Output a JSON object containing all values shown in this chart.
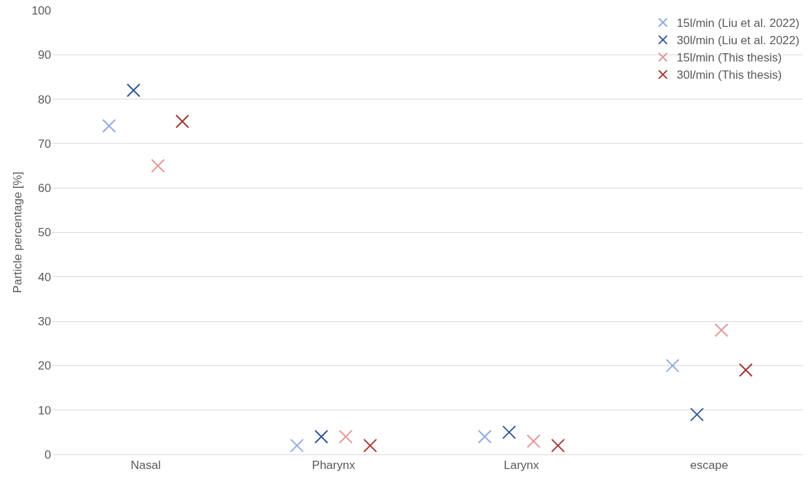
{
  "chart_data": {
    "type": "scatter",
    "ylabel": "Particle percentage [%]",
    "categories": [
      "Nasal",
      "Pharynx",
      "Larynx",
      "escape"
    ],
    "series": [
      {
        "name": "15l/min (Liu et al. 2022)",
        "color": "#8faadc",
        "values": [
          74,
          2,
          4,
          20
        ]
      },
      {
        "name": "30l/min (Liu et al. 2022)",
        "color": "#2f5597",
        "values": [
          82,
          4,
          5,
          9
        ]
      },
      {
        "name": "15l/min (This thesis)",
        "color": "#e09997",
        "values": [
          65,
          4,
          3,
          28
        ]
      },
      {
        "name": "30l/min (This thesis)",
        "color": "#9e3330",
        "values": [
          75,
          2,
          2,
          19
        ]
      }
    ],
    "ylim": [
      0,
      100
    ],
    "yticks": [
      0,
      10,
      20,
      30,
      40,
      50,
      60,
      70,
      80,
      90,
      100
    ],
    "grid": "y",
    "legend": "top right",
    "marker": "cross"
  }
}
